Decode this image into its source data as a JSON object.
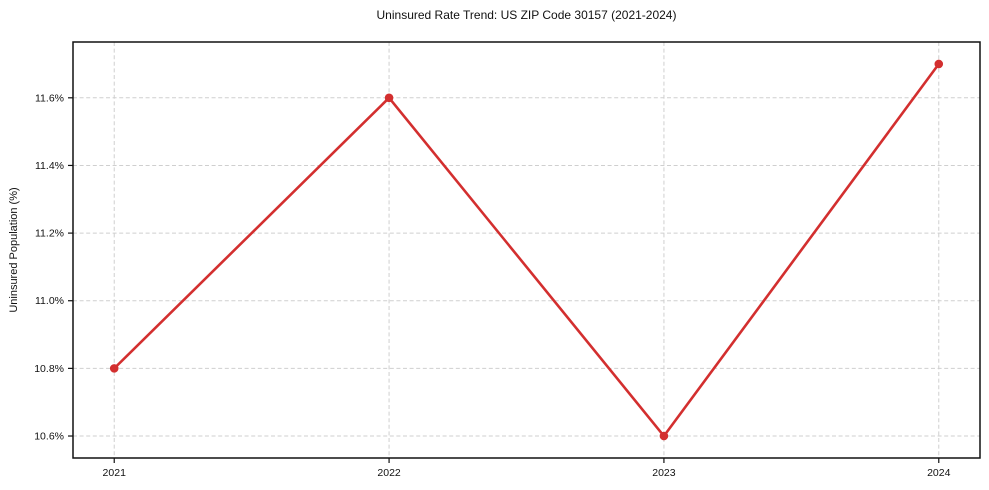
{
  "chart_data": {
    "type": "line",
    "title": "Uninsured Rate Trend: US ZIP Code 30157 (2021-2024)",
    "xlabel": "",
    "ylabel": "Uninsured Population (%)",
    "x": [
      2021,
      2022,
      2023,
      2024
    ],
    "values": [
      10.8,
      11.6,
      10.6,
      11.7
    ],
    "xticks": [
      2021,
      2022,
      2023,
      2024
    ],
    "xtick_labels": [
      "2021",
      "2022",
      "2023",
      "2024"
    ],
    "yticks": [
      10.6,
      10.8,
      11.0,
      11.2,
      11.4,
      11.6
    ],
    "ytick_labels": [
      "10.6%",
      "10.8%",
      "11.0%",
      "11.2%",
      "11.4%",
      "11.6%"
    ],
    "xlim": [
      2020.85,
      2024.15
    ],
    "ylim": [
      10.535,
      11.765
    ],
    "grid": true,
    "legend": "none",
    "line_color": "#d32f2f",
    "marker": "circle"
  }
}
